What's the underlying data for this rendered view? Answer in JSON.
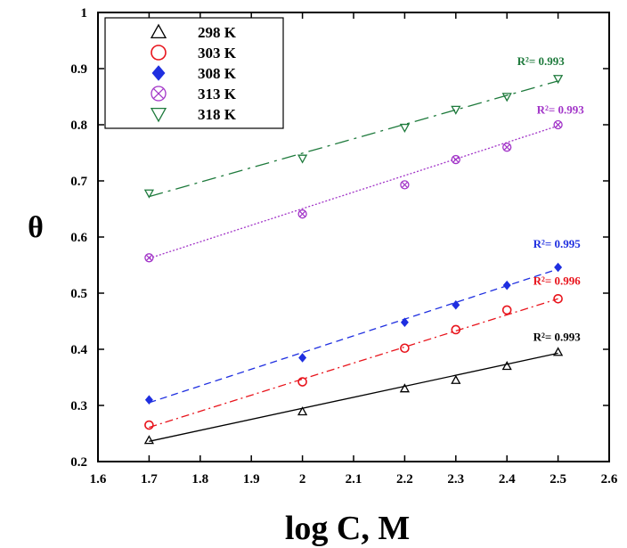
{
  "chart_data": {
    "type": "scatter",
    "xlabel": "log C, M",
    "ylabel": "θ",
    "xlim": [
      1.6,
      2.6
    ],
    "ylim": [
      0.2,
      1.0
    ],
    "xticks": [
      "1.6",
      "1.7",
      "1.8",
      "1.9",
      "2",
      "2.1",
      "2.2",
      "2.3",
      "2.4",
      "2.5",
      "2.6"
    ],
    "yticks": [
      "0.2",
      "0.3",
      "0.4",
      "0.5",
      "0.6",
      "0.7",
      "0.8",
      "0.9",
      "1"
    ],
    "grid": false,
    "legend_position": "top-left",
    "x": [
      1.7,
      2.0,
      2.2,
      2.3,
      2.4,
      2.5
    ],
    "series": [
      {
        "name": "298 K",
        "marker": "triangle-up-open",
        "color": "#000000",
        "line_style": "solid",
        "values": [
          0.238,
          0.289,
          0.33,
          0.345,
          0.37,
          0.395
        ],
        "fit": [
          0.236,
          0.393
        ],
        "r2_label": "R²= 0.993"
      },
      {
        "name": "303 K",
        "marker": "circle-open",
        "color": "#e8141c",
        "line_style": "dash-dot",
        "values": [
          0.265,
          0.342,
          0.402,
          0.435,
          0.47,
          0.49
        ],
        "fit": [
          0.261,
          0.49
        ],
        "r2_label": "R²= 0.996"
      },
      {
        "name": "308 K",
        "marker": "diamond-filled",
        "color": "#1f2fe0",
        "line_style": "dashed",
        "values": [
          0.31,
          0.385,
          0.448,
          0.479,
          0.514,
          0.546
        ],
        "fit": [
          0.305,
          0.543
        ],
        "r2_label": "R²= 0.995"
      },
      {
        "name": "313 K",
        "marker": "circle-x",
        "color": "#a235c8",
        "line_style": "dotted",
        "values": [
          0.563,
          0.641,
          0.693,
          0.738,
          0.76,
          0.8
        ],
        "fit": [
          0.562,
          0.798
        ],
        "r2_label": "R²= 0.993"
      },
      {
        "name": "318 K",
        "marker": "triangle-down-open",
        "color": "#1e7a3c",
        "line_style": "long-dash-dot",
        "values": [
          0.678,
          0.74,
          0.795,
          0.827,
          0.85,
          0.882
        ],
        "fit": [
          0.672,
          0.878
        ],
        "r2_label": "R²= 0.993"
      }
    ]
  }
}
